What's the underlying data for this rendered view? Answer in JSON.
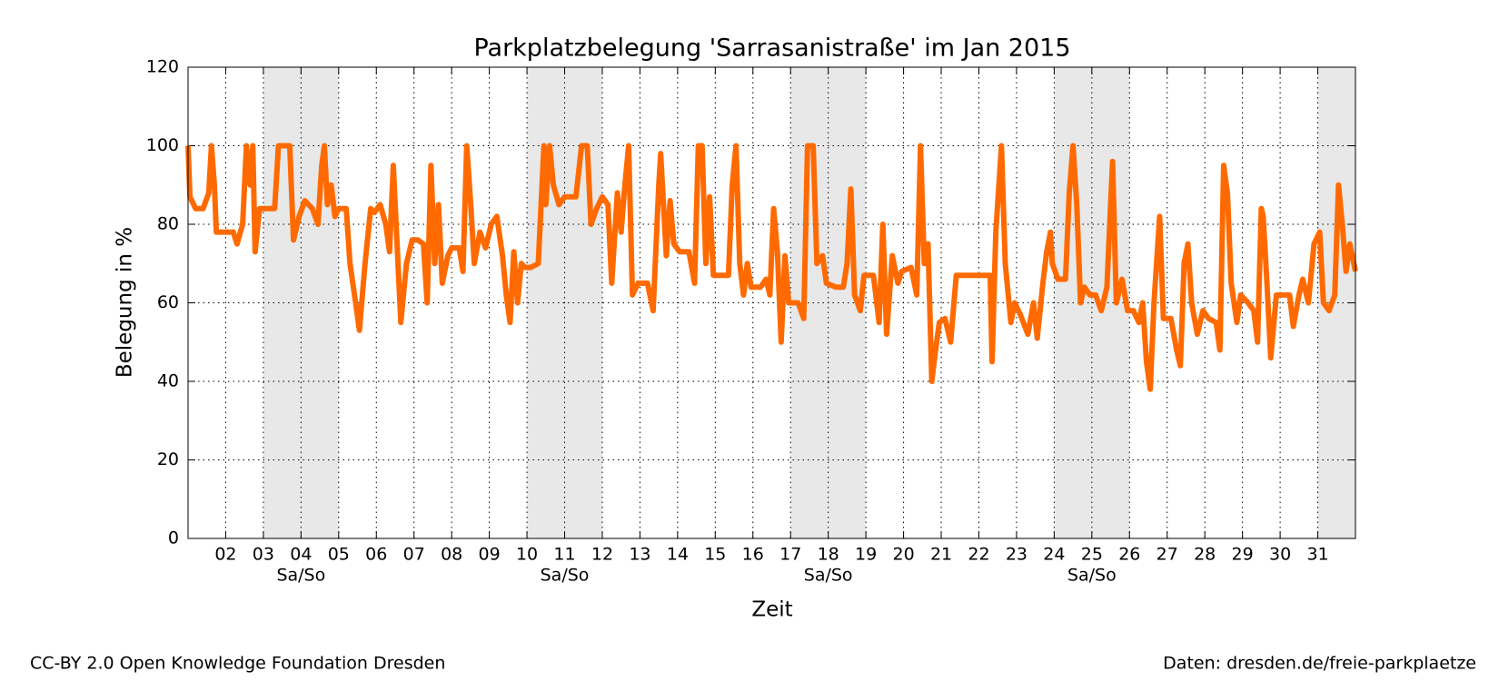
{
  "chart_data": {
    "type": "line",
    "title": "Parkplatzbelegung 'Sarrasanistraße' im Jan 2015",
    "x_label": "Zeit",
    "y_label": "Belegung in %",
    "footer_left": "CC-BY 2.0 Open Knowledge Foundation Dresden",
    "footer_right": "Daten: dresden.de/freie-parkplaetze",
    "xlim": [
      1,
      32
    ],
    "ylim": [
      0,
      120
    ],
    "yticks": [
      0,
      20,
      40,
      60,
      80,
      100,
      120
    ],
    "xticks": [
      {
        "value": 2,
        "label": "02"
      },
      {
        "value": 3,
        "label": "03"
      },
      {
        "value": 4,
        "label": "04"
      },
      {
        "value": 5,
        "label": "05"
      },
      {
        "value": 6,
        "label": "06"
      },
      {
        "value": 7,
        "label": "07"
      },
      {
        "value": 8,
        "label": "08"
      },
      {
        "value": 9,
        "label": "09"
      },
      {
        "value": 10,
        "label": "10"
      },
      {
        "value": 11,
        "label": "11"
      },
      {
        "value": 12,
        "label": "12"
      },
      {
        "value": 13,
        "label": "13"
      },
      {
        "value": 14,
        "label": "14"
      },
      {
        "value": 15,
        "label": "15"
      },
      {
        "value": 16,
        "label": "16"
      },
      {
        "value": 17,
        "label": "17"
      },
      {
        "value": 18,
        "label": "18"
      },
      {
        "value": 19,
        "label": "19"
      },
      {
        "value": 20,
        "label": "20"
      },
      {
        "value": 21,
        "label": "21"
      },
      {
        "value": 22,
        "label": "22"
      },
      {
        "value": 23,
        "label": "23"
      },
      {
        "value": 24,
        "label": "24"
      },
      {
        "value": 25,
        "label": "25"
      },
      {
        "value": 26,
        "label": "26"
      },
      {
        "value": 27,
        "label": "27"
      },
      {
        "value": 28,
        "label": "28"
      },
      {
        "value": 29,
        "label": "29"
      },
      {
        "value": 30,
        "label": "30"
      },
      {
        "value": 31,
        "label": "31"
      }
    ],
    "grid": true,
    "weekends": [
      {
        "start": 3,
        "end": 5,
        "label": "Sa/So"
      },
      {
        "start": 10,
        "end": 12,
        "label": "Sa/So"
      },
      {
        "start": 17,
        "end": 19,
        "label": "Sa/So"
      },
      {
        "start": 24,
        "end": 26,
        "label": "Sa/So"
      },
      {
        "start": 31,
        "end": 32,
        "label": null
      }
    ],
    "weekend_color": "#e8e8e8",
    "series": [
      {
        "color": "#ff6a00",
        "x": [
          1.0,
          1.05,
          1.2,
          1.4,
          1.55,
          1.62,
          1.7,
          1.75,
          1.9,
          2.0,
          2.2,
          2.3,
          2.45,
          2.55,
          2.65,
          2.72,
          2.78,
          2.9,
          3.0,
          3.3,
          3.4,
          3.7,
          3.8,
          3.95,
          4.1,
          4.3,
          4.45,
          4.55,
          4.62,
          4.7,
          4.8,
          4.9,
          5.0,
          5.2,
          5.3,
          5.45,
          5.55,
          5.7,
          5.85,
          5.95,
          6.1,
          6.25,
          6.35,
          6.45,
          6.55,
          6.65,
          6.8,
          6.95,
          7.1,
          7.25,
          7.35,
          7.45,
          7.55,
          7.65,
          7.75,
          7.9,
          8.0,
          8.2,
          8.3,
          8.4,
          8.5,
          8.6,
          8.75,
          8.9,
          9.05,
          9.2,
          9.35,
          9.45,
          9.55,
          9.65,
          9.75,
          9.85,
          9.95,
          10.1,
          10.3,
          10.45,
          10.5,
          10.6,
          10.7,
          10.85,
          11.0,
          11.3,
          11.45,
          11.6,
          11.7,
          11.85,
          12.0,
          12.15,
          12.25,
          12.4,
          12.5,
          12.6,
          12.7,
          12.8,
          12.95,
          13.2,
          13.35,
          13.5,
          13.55,
          13.7,
          13.8,
          13.9,
          14.05,
          14.3,
          14.45,
          14.55,
          14.65,
          14.75,
          14.85,
          14.95,
          15.1,
          15.35,
          15.45,
          15.55,
          15.65,
          15.75,
          15.85,
          15.95,
          16.2,
          16.35,
          16.45,
          16.55,
          16.65,
          16.75,
          16.85,
          16.95,
          17.2,
          17.35,
          17.45,
          17.6,
          17.7,
          17.85,
          17.95,
          18.2,
          18.4,
          18.5,
          18.6,
          18.7,
          18.85,
          18.95,
          19.2,
          19.35,
          19.45,
          19.55,
          19.7,
          19.85,
          19.95,
          20.2,
          20.35,
          20.45,
          20.55,
          20.65,
          20.75,
          20.85,
          20.95,
          21.1,
          21.25,
          21.4,
          21.7,
          21.95,
          22.2,
          22.3,
          22.35,
          22.45,
          22.6,
          22.7,
          22.85,
          22.95,
          23.1,
          23.3,
          23.45,
          23.55,
          23.7,
          23.8,
          23.9,
          23.95,
          24.1,
          24.3,
          24.4,
          24.5,
          24.6,
          24.7,
          24.8,
          24.95,
          25.1,
          25.25,
          25.4,
          25.55,
          25.65,
          25.8,
          25.95,
          26.1,
          26.25,
          26.35,
          26.45,
          26.55,
          26.65,
          26.8,
          26.9,
          27.1,
          27.25,
          27.35,
          27.45,
          27.55,
          27.65,
          27.8,
          27.95,
          28.1,
          28.3,
          28.4,
          28.5,
          28.6,
          28.7,
          28.85,
          28.95,
          29.15,
          29.3,
          29.4,
          29.5,
          29.55,
          29.65,
          29.75,
          29.9,
          30.1,
          30.25,
          30.35,
          30.5,
          30.6,
          30.75,
          30.9,
          31.05,
          31.15,
          31.3,
          31.45,
          31.55,
          31.65,
          31.75,
          31.85,
          32.0
        ],
        "values": [
          100,
          87,
          84,
          84,
          88,
          100,
          90,
          78,
          78,
          78,
          78,
          75,
          80,
          100,
          90,
          100,
          73,
          84,
          84,
          84,
          100,
          100,
          76,
          82,
          86,
          84,
          80,
          95,
          100,
          85,
          90,
          82,
          84,
          84,
          70,
          60,
          53,
          70,
          84,
          83,
          85,
          80,
          73,
          95,
          75,
          55,
          70,
          76,
          76,
          75,
          60,
          95,
          70,
          85,
          65,
          72,
          74,
          74,
          68,
          100,
          86,
          70,
          78,
          74,
          80,
          82,
          72,
          62,
          55,
          73,
          60,
          70,
          69,
          69,
          70,
          100,
          85,
          100,
          90,
          85,
          87,
          87,
          100,
          100,
          80,
          84,
          87,
          85,
          65,
          88,
          78,
          90,
          100,
          62,
          65,
          65,
          58,
          90,
          98,
          72,
          86,
          75,
          73,
          73,
          65,
          100,
          100,
          70,
          87,
          67,
          67,
          67,
          90,
          100,
          70,
          62,
          70,
          64,
          64,
          66,
          62,
          84,
          73,
          50,
          72,
          60,
          60,
          56,
          100,
          100,
          70,
          72,
          65,
          64,
          64,
          70,
          89,
          62,
          58,
          67,
          67,
          55,
          80,
          52,
          72,
          65,
          68,
          69,
          62,
          100,
          70,
          75,
          40,
          48,
          55,
          56,
          50,
          67,
          67,
          67,
          67,
          67,
          45,
          78,
          100,
          70,
          55,
          60,
          57,
          52,
          60,
          51,
          65,
          73,
          78,
          70,
          66,
          66,
          88,
          100,
          85,
          60,
          64,
          62,
          62,
          58,
          64,
          96,
          60,
          66,
          58,
          58,
          55,
          60,
          45,
          38,
          60,
          82,
          56,
          56,
          48,
          44,
          70,
          75,
          60,
          52,
          58,
          56,
          55,
          48,
          95,
          88,
          65,
          55,
          62,
          60,
          58,
          50,
          84,
          82,
          65,
          46,
          62,
          62,
          62,
          54,
          62,
          66,
          60,
          75,
          78,
          60,
          58,
          62,
          90,
          80,
          68,
          75,
          68
        ]
      }
    ]
  }
}
